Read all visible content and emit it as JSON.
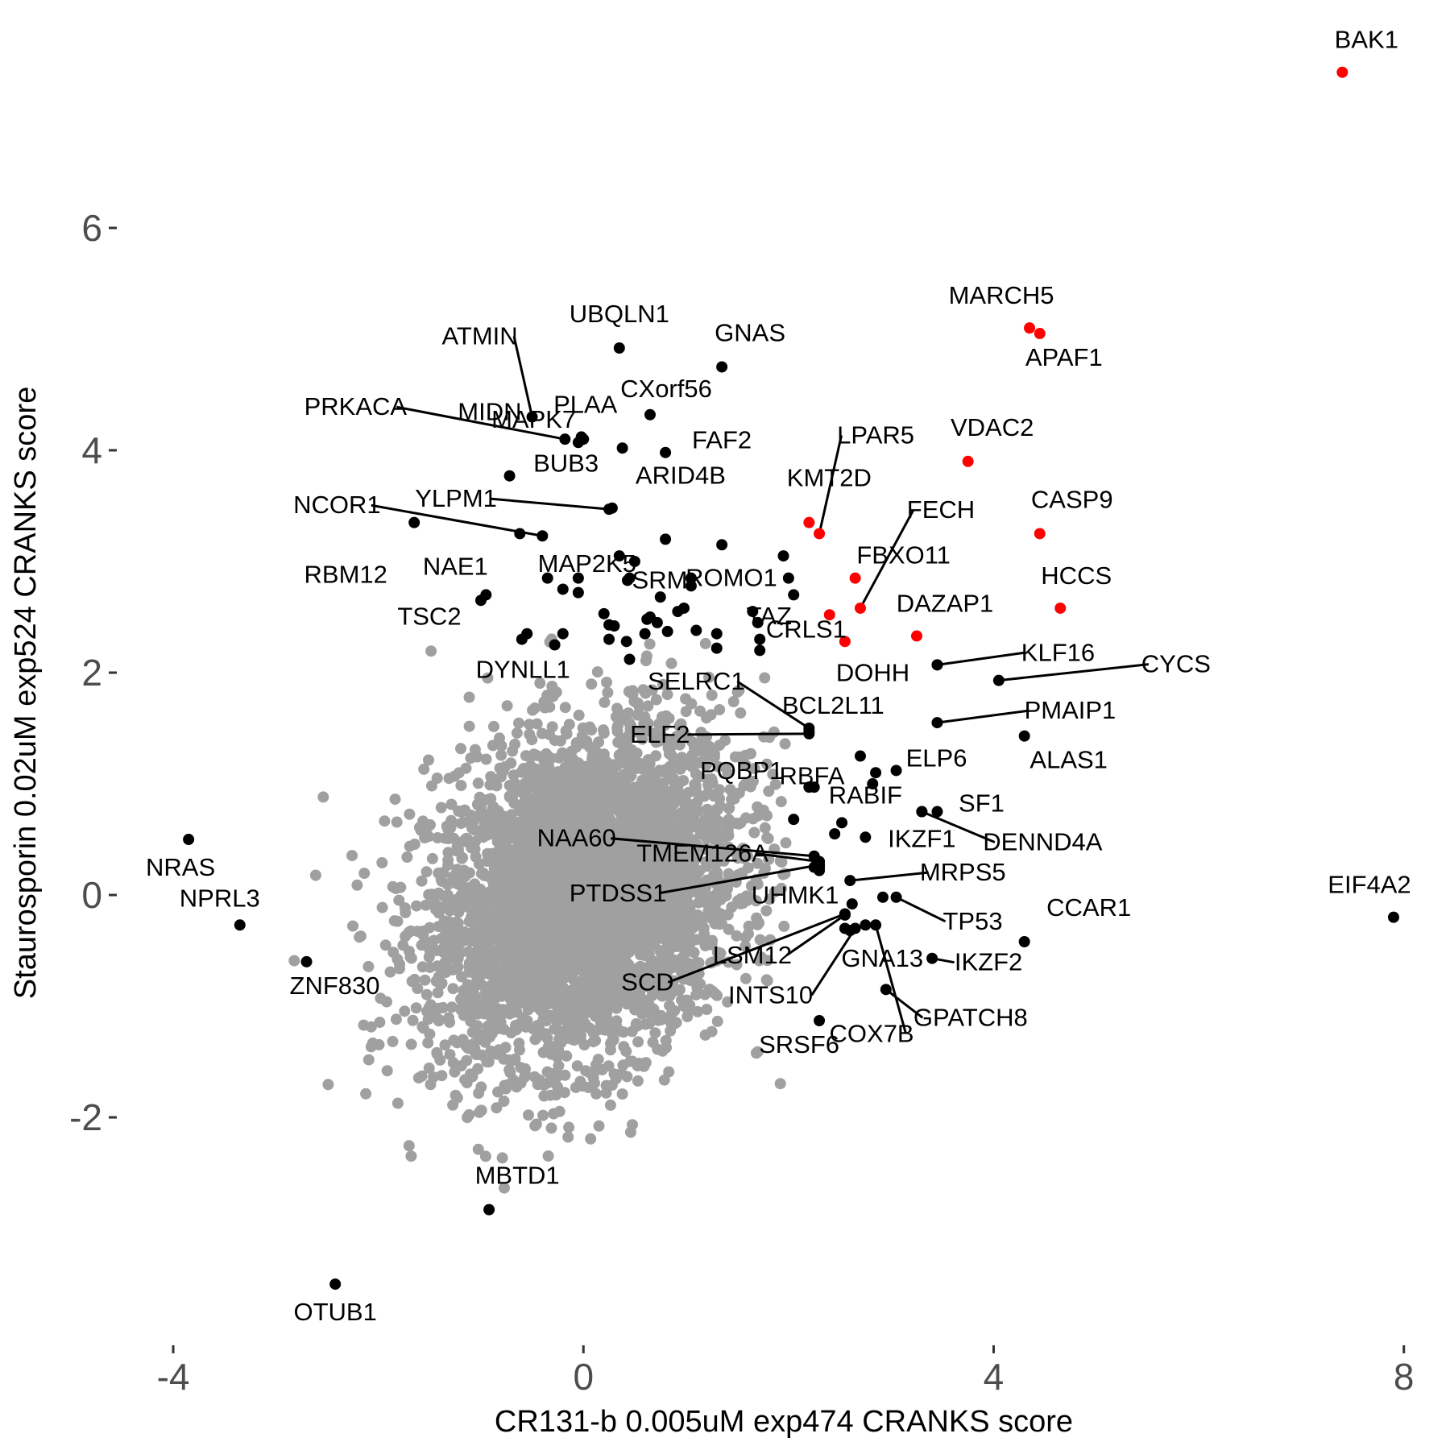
{
  "chart_data": {
    "type": "scatter",
    "xlabel": "CR131-b 0.005uM exp474 CRANKS score",
    "ylabel": "Staurosporin 0.02uM exp524 CRANKS score",
    "xlim": [
      -4.55,
      8.45
    ],
    "ylim": [
      -4.05,
      8.05
    ],
    "x_ticks": [
      -4,
      0,
      4,
      8
    ],
    "x_tick_labels": [
      "-4",
      "0",
      "4",
      "8"
    ],
    "y_ticks": [
      -2,
      0,
      2,
      4,
      6
    ],
    "y_tick_labels": [
      "-2",
      "0",
      "2",
      "4",
      "6"
    ],
    "grid": false,
    "colors": {
      "background": "#ffffff",
      "highlight": "#ff0000",
      "labeled": "#000000",
      "background_points": "#a0a0a0",
      "axis_text": "#4d4d4d"
    },
    "background_cloud": {
      "description_color": "#a0a0a0",
      "center_x": 0.0,
      "center_y": 0.0,
      "sd_x": 0.75,
      "sd_y": 0.72
    },
    "labeled_points": [
      {
        "gene": "BAK1",
        "x": 7.4,
        "y": 7.4,
        "highlight": true
      },
      {
        "gene": "MARCH5",
        "x": 4.35,
        "y": 5.1,
        "highlight": true
      },
      {
        "gene": "APAF1",
        "x": 4.45,
        "y": 5.05,
        "highlight": true
      },
      {
        "gene": "VDAC2",
        "x": 3.75,
        "y": 3.9,
        "highlight": true
      },
      {
        "gene": "CASP9",
        "x": 4.45,
        "y": 3.25,
        "highlight": true
      },
      {
        "gene": "HCCS",
        "x": 4.65,
        "y": 2.58,
        "highlight": true
      },
      {
        "gene": "KMT2D",
        "x": 2.2,
        "y": 3.35,
        "highlight": true
      },
      {
        "gene": "LPAR5",
        "x": 2.3,
        "y": 3.25,
        "highlight": true
      },
      {
        "gene": "FBXO11",
        "x": 2.65,
        "y": 2.85,
        "highlight": true
      },
      {
        "gene": "FECH",
        "x": 2.7,
        "y": 2.58,
        "highlight": true
      },
      {
        "gene": "TAZ",
        "x": 2.4,
        "y": 2.52,
        "highlight": true
      },
      {
        "gene": "CRLS1",
        "x": 2.55,
        "y": 2.28,
        "highlight": true
      },
      {
        "gene": "DAZAP1",
        "x": 3.25,
        "y": 2.33,
        "highlight": true
      },
      {
        "gene": "UBQLN1",
        "x": 0.35,
        "y": 4.92,
        "highlight": false
      },
      {
        "gene": "GNAS",
        "x": 1.35,
        "y": 4.75,
        "highlight": false
      },
      {
        "gene": "ATMIN",
        "x": -0.5,
        "y": 4.3,
        "highlight": false
      },
      {
        "gene": "CXorf56",
        "x": 0.65,
        "y": 4.32,
        "highlight": false
      },
      {
        "gene": "PRKACA",
        "x": -0.18,
        "y": 4.1,
        "highlight": false
      },
      {
        "gene": "MIDN",
        "x": -0.05,
        "y": 4.07,
        "highlight": false
      },
      {
        "gene": "PLAA",
        "x": -0.02,
        "y": 4.12,
        "highlight": false
      },
      {
        "gene": "FAF2",
        "x": 0.8,
        "y": 3.98,
        "highlight": false
      },
      {
        "gene": "MAPK7",
        "x": 0.38,
        "y": 4.02,
        "highlight": false
      },
      {
        "gene": "BUB3",
        "x": -0.72,
        "y": 3.77,
        "highlight": false
      },
      {
        "gene": "ARID4B",
        "x": 0.28,
        "y": 3.48,
        "highlight": false
      },
      {
        "gene": "YLPM1",
        "x": 0.25,
        "y": 3.47,
        "highlight": false
      },
      {
        "gene": "NCOR1",
        "x": -0.4,
        "y": 3.23,
        "highlight": false
      },
      {
        "gene": "RBM12",
        "x": -1.65,
        "y": 3.35,
        "highlight": false
      },
      {
        "gene": "MAP2K5",
        "x": 0.35,
        "y": 3.05,
        "highlight": false
      },
      {
        "gene": "SRM",
        "x": 0.43,
        "y": 2.83,
        "highlight": false
      },
      {
        "gene": "ROMO1",
        "x": 1.05,
        "y": 2.78,
        "highlight": false
      },
      {
        "gene": "NAE1",
        "x": -0.95,
        "y": 2.7,
        "highlight": false
      },
      {
        "gene": "TSC2",
        "x": -1.0,
        "y": 2.65,
        "highlight": false
      },
      {
        "gene": "DYNLL1",
        "x": -0.55,
        "y": 2.35,
        "highlight": false
      },
      {
        "gene": "DOHH",
        "x": 3.45,
        "y": 2.07,
        "highlight": false
      },
      {
        "gene": "KLF16",
        "x": 3.45,
        "y": 2.07,
        "highlight": false
      },
      {
        "gene": "CYCS",
        "x": 4.05,
        "y": 1.93,
        "highlight": false
      },
      {
        "gene": "SELRC1",
        "x": 2.2,
        "y": 1.5,
        "highlight": false
      },
      {
        "gene": "BCL2L11",
        "x": 2.2,
        "y": 1.47,
        "highlight": false
      },
      {
        "gene": "PMAIP1",
        "x": 3.45,
        "y": 1.55,
        "highlight": false
      },
      {
        "gene": "ELF2",
        "x": 2.2,
        "y": 1.45,
        "highlight": false
      },
      {
        "gene": "RBFA",
        "x": 2.7,
        "y": 1.25,
        "highlight": false
      },
      {
        "gene": "ALAS1",
        "x": 4.3,
        "y": 1.43,
        "highlight": false
      },
      {
        "gene": "ELP6",
        "x": 3.05,
        "y": 1.12,
        "highlight": false
      },
      {
        "gene": "PQBP1",
        "x": 2.25,
        "y": 0.97,
        "highlight": false
      },
      {
        "gene": "RABIF",
        "x": 3.3,
        "y": 0.75,
        "highlight": false
      },
      {
        "gene": "SF1",
        "x": 3.45,
        "y": 0.75,
        "highlight": false
      },
      {
        "gene": "DENND4A",
        "x": 3.3,
        "y": 0.75,
        "highlight": false
      },
      {
        "gene": "IKZF1",
        "x": 2.75,
        "y": 0.52,
        "highlight": false
      },
      {
        "gene": "NAA60",
        "x": 2.25,
        "y": 0.35,
        "highlight": false
      },
      {
        "gene": "TMEM126A",
        "x": 2.3,
        "y": 0.3,
        "highlight": false
      },
      {
        "gene": "PTDSS1",
        "x": 2.3,
        "y": 0.27,
        "highlight": false
      },
      {
        "gene": "MRPS5",
        "x": 2.6,
        "y": 0.13,
        "highlight": false
      },
      {
        "gene": "UHMK1",
        "x": 2.3,
        "y": 0.25,
        "highlight": false
      },
      {
        "gene": "CCAR1",
        "x": 4.3,
        "y": -0.42,
        "highlight": false
      },
      {
        "gene": "TP53",
        "x": 3.05,
        "y": -0.02,
        "highlight": false
      },
      {
        "gene": "EIF4A2",
        "x": 7.9,
        "y": -0.2,
        "highlight": false
      },
      {
        "gene": "LSM12",
        "x": 2.55,
        "y": -0.18,
        "highlight": false
      },
      {
        "gene": "IKZF2",
        "x": 3.4,
        "y": -0.57,
        "highlight": false
      },
      {
        "gene": "GNA13",
        "x": 2.6,
        "y": -0.32,
        "highlight": false
      },
      {
        "gene": "SCD",
        "x": 2.55,
        "y": -0.17,
        "highlight": false
      },
      {
        "gene": "INTS10",
        "x": 2.65,
        "y": -0.3,
        "highlight": false
      },
      {
        "gene": "GPATCH8",
        "x": 2.95,
        "y": -0.85,
        "highlight": false
      },
      {
        "gene": "COX7B",
        "x": 2.85,
        "y": -0.27,
        "highlight": false
      },
      {
        "gene": "SRSF6",
        "x": 2.3,
        "y": -1.13,
        "highlight": false
      },
      {
        "gene": "NRAS",
        "x": -3.85,
        "y": 0.5,
        "highlight": false
      },
      {
        "gene": "NPRL3",
        "x": -3.35,
        "y": -0.27,
        "highlight": false
      },
      {
        "gene": "ZNF830",
        "x": -2.7,
        "y": -0.6,
        "highlight": false
      },
      {
        "gene": "MBTD1",
        "x": -0.92,
        "y": -2.83,
        "highlight": false
      },
      {
        "gene": "OTUB1",
        "x": -2.42,
        "y": -3.5,
        "highlight": false
      }
    ],
    "extra_black_points": [
      {
        "x": 0.0,
        "y": 4.1
      },
      {
        "x": -0.62,
        "y": 3.25
      },
      {
        "x": 0.8,
        "y": 3.2
      },
      {
        "x": 1.35,
        "y": 3.15
      },
      {
        "x": -0.35,
        "y": 2.85
      },
      {
        "x": -0.2,
        "y": 2.75
      },
      {
        "x": -0.05,
        "y": 2.85
      },
      {
        "x": -0.05,
        "y": 2.72
      },
      {
        "x": 0.5,
        "y": 3.0
      },
      {
        "x": 0.45,
        "y": 2.85
      },
      {
        "x": 0.75,
        "y": 2.68
      },
      {
        "x": 1.05,
        "y": 2.85
      },
      {
        "x": 1.95,
        "y": 3.05
      },
      {
        "x": 2.0,
        "y": 2.85
      },
      {
        "x": 2.05,
        "y": 2.7
      },
      {
        "x": 1.65,
        "y": 2.55
      },
      {
        "x": 0.2,
        "y": 2.53
      },
      {
        "x": 0.25,
        "y": 2.43
      },
      {
        "x": 0.3,
        "y": 2.42
      },
      {
        "x": 0.62,
        "y": 2.48
      },
      {
        "x": 0.72,
        "y": 2.45
      },
      {
        "x": 0.92,
        "y": 2.55
      },
      {
        "x": 0.98,
        "y": 2.58
      },
      {
        "x": 0.82,
        "y": 2.37
      },
      {
        "x": 0.6,
        "y": 2.35
      },
      {
        "x": 0.65,
        "y": 2.5
      },
      {
        "x": 1.1,
        "y": 2.38
      },
      {
        "x": 1.3,
        "y": 2.35
      },
      {
        "x": 1.3,
        "y": 2.22
      },
      {
        "x": 1.7,
        "y": 2.45
      },
      {
        "x": 1.72,
        "y": 2.3
      },
      {
        "x": 1.72,
        "y": 2.2
      },
      {
        "x": 0.25,
        "y": 2.3
      },
      {
        "x": 0.42,
        "y": 2.28
      },
      {
        "x": 0.45,
        "y": 2.12
      },
      {
        "x": -0.2,
        "y": 2.35
      },
      {
        "x": -0.6,
        "y": 2.3
      },
      {
        "x": -0.28,
        "y": 2.25
      },
      {
        "x": 2.05,
        "y": 0.68
      },
      {
        "x": 2.2,
        "y": 0.97
      },
      {
        "x": 2.45,
        "y": 0.55
      },
      {
        "x": 2.52,
        "y": 0.65
      },
      {
        "x": 2.82,
        "y": 1.0
      },
      {
        "x": 2.85,
        "y": 1.1
      },
      {
        "x": 2.3,
        "y": 0.3
      },
      {
        "x": 2.25,
        "y": 0.25
      },
      {
        "x": 2.3,
        "y": 0.22
      },
      {
        "x": 2.62,
        "y": -0.08
      },
      {
        "x": 2.55,
        "y": -0.3
      },
      {
        "x": 2.92,
        "y": -0.02
      },
      {
        "x": 2.75,
        "y": -0.27
      }
    ]
  }
}
